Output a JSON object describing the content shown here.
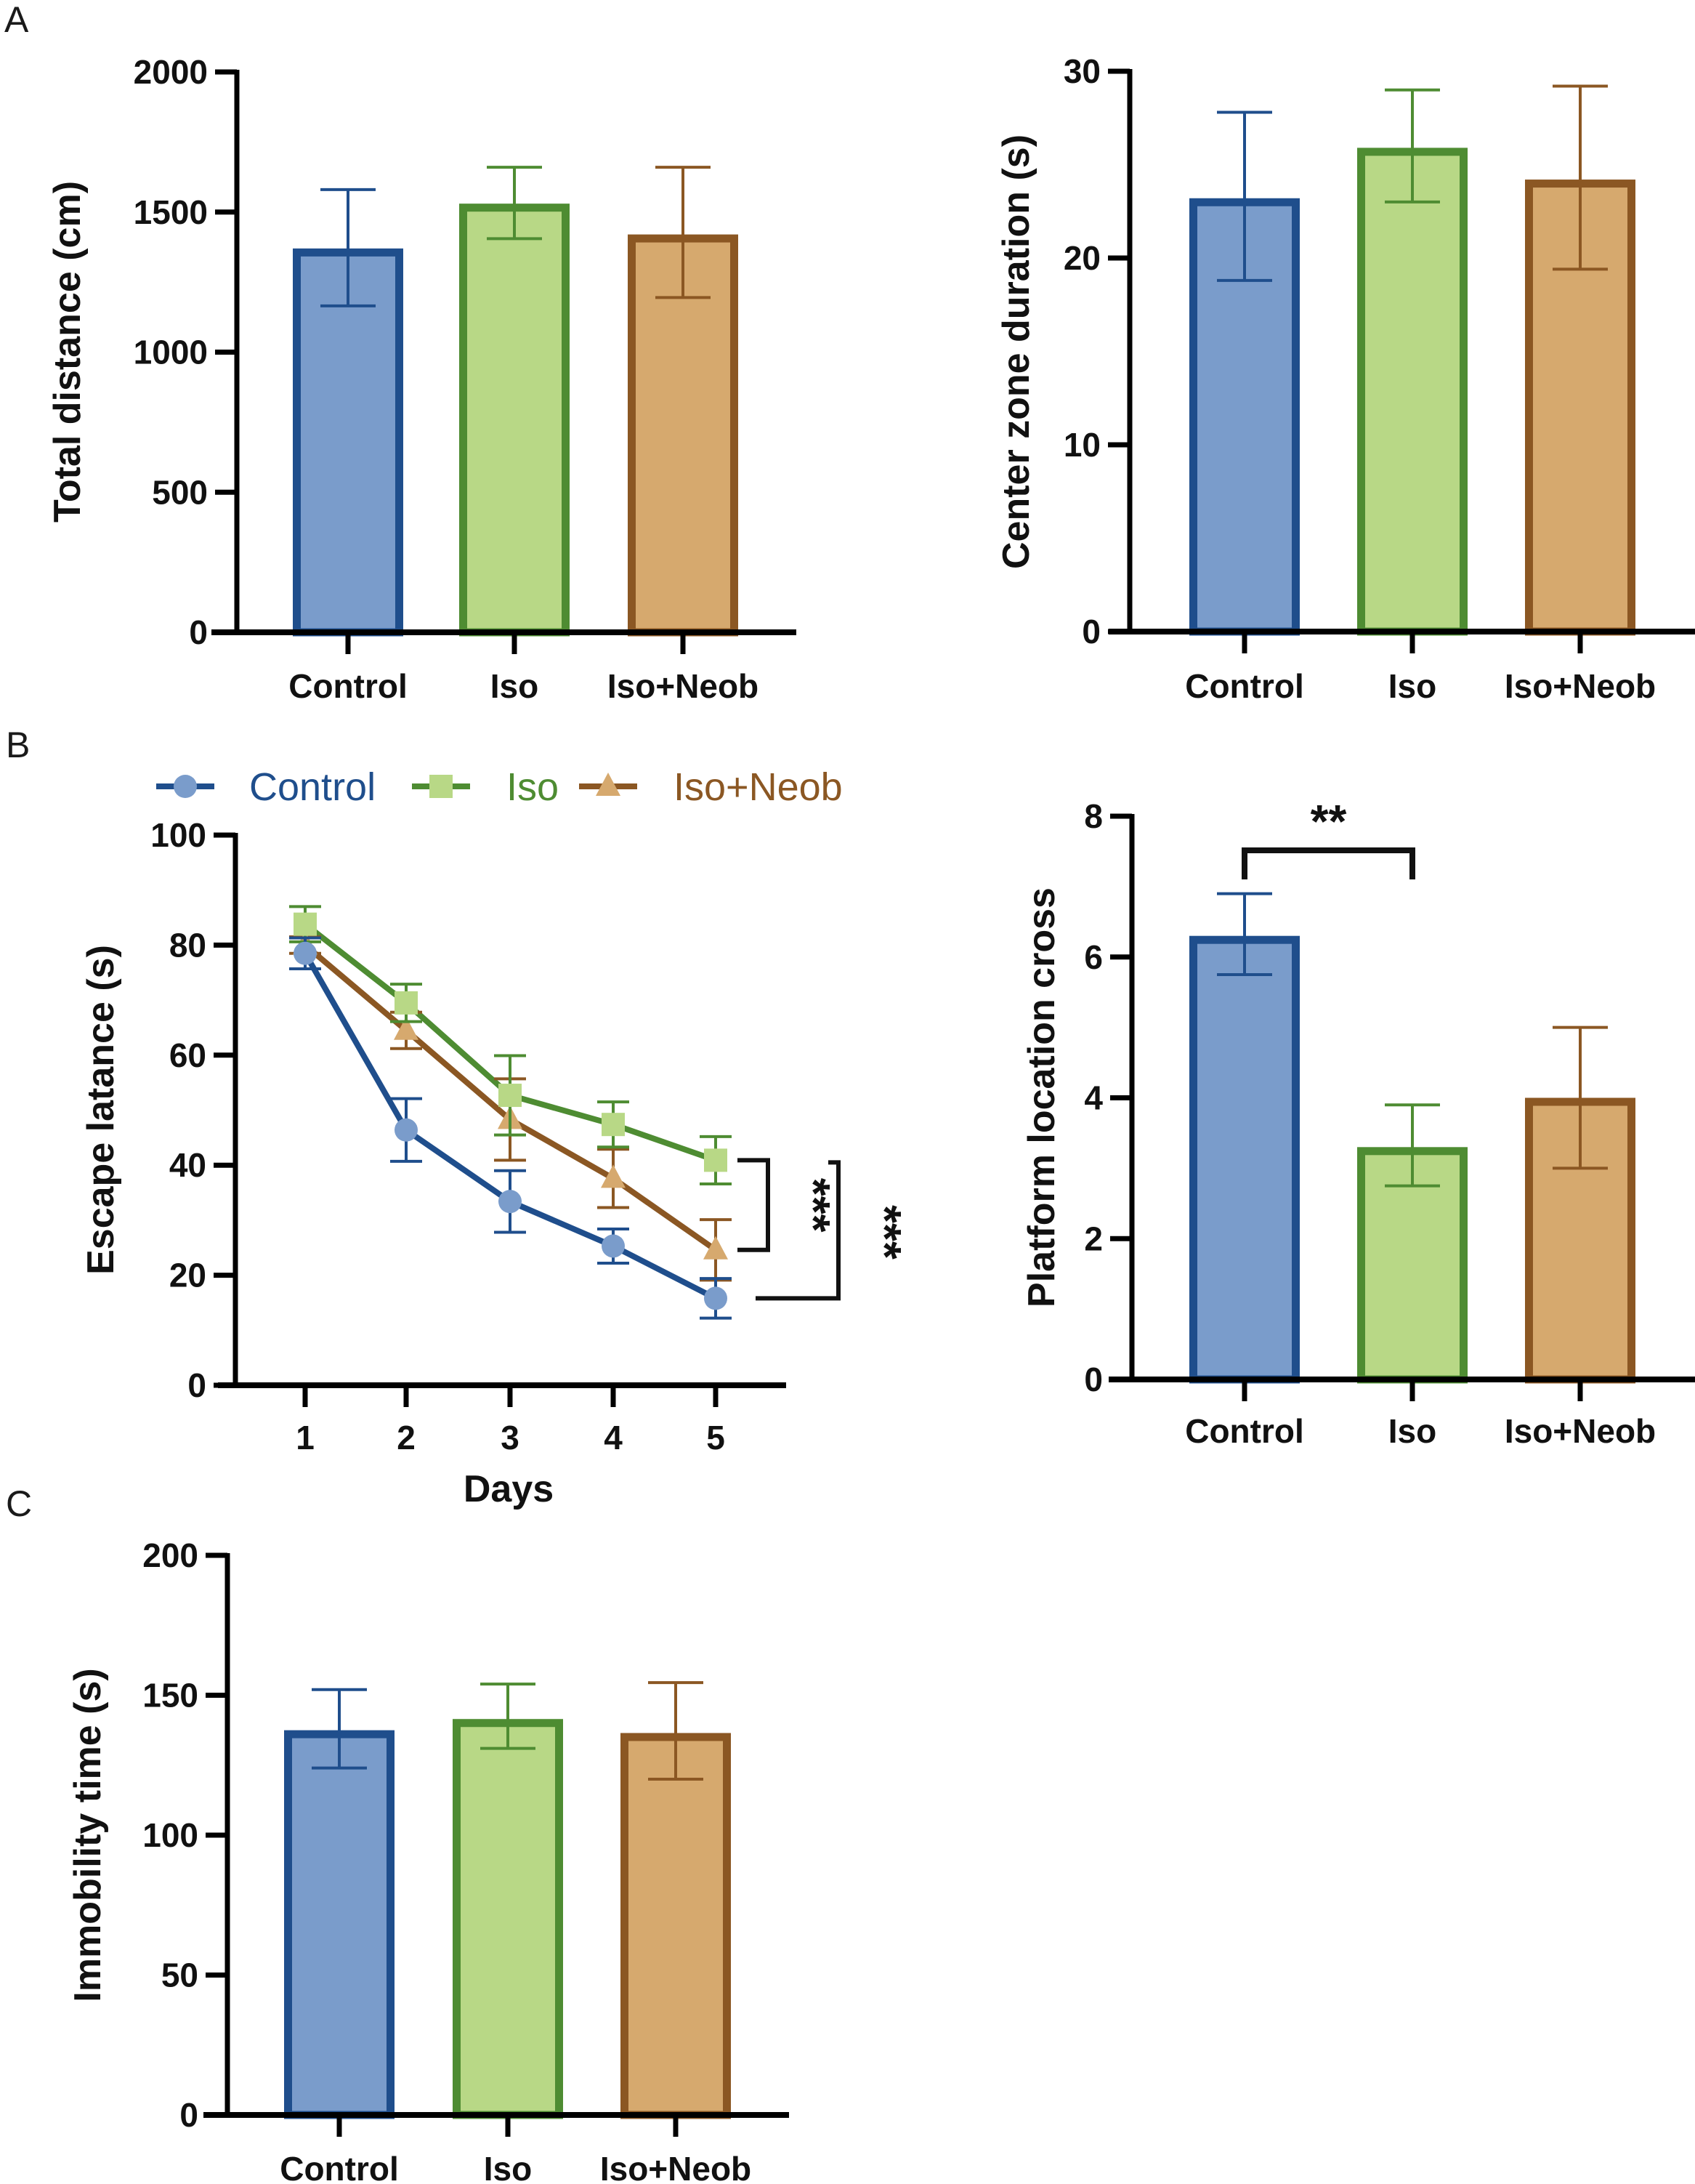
{
  "figure": {
    "panel_labels": [
      "A",
      "B",
      "C"
    ],
    "groups": [
      "Control",
      "Iso",
      "Iso+Neob"
    ],
    "colors": {
      "Control": {
        "fill": "#7a9ccb",
        "stroke": "#1f4e8c"
      },
      "Iso": {
        "fill": "#b8d886",
        "stroke": "#4e8c32"
      },
      "Iso+Neob": {
        "fill": "#d6a96e",
        "stroke": "#8b5723"
      }
    }
  },
  "chart_data": [
    {
      "id": "total-distance",
      "panel": "A",
      "type": "bar",
      "title": "",
      "xlabel": "",
      "ylabel": "Total distance (cm)",
      "categories": [
        "Control",
        "Iso",
        "Iso+Neob"
      ],
      "values": [
        1370,
        1530,
        1420
      ],
      "error_upper": [
        1580,
        1660,
        1660
      ],
      "error_lower": [
        1165,
        1405,
        1195
      ],
      "ylim": [
        0,
        2000
      ],
      "yticks": [
        0,
        500,
        1000,
        1500,
        2000
      ],
      "grid": false,
      "significance": []
    },
    {
      "id": "center-zone-duration",
      "panel": "A",
      "type": "bar",
      "title": "",
      "xlabel": "",
      "ylabel": "Center zone duration (s)",
      "categories": [
        "Control",
        "Iso",
        "Iso+Neob"
      ],
      "values": [
        23.2,
        25.9,
        24.2
      ],
      "error_upper": [
        27.8,
        29.0,
        29.2
      ],
      "error_lower": [
        18.8,
        23.0,
        19.4
      ],
      "ylim": [
        0,
        30
      ],
      "yticks": [
        0,
        10,
        20,
        30
      ],
      "grid": false,
      "significance": []
    },
    {
      "id": "escape-latency",
      "panel": "B",
      "type": "line",
      "title": "",
      "xlabel": "Days",
      "ylabel": "Escape latance (s)",
      "x": [
        1,
        2,
        3,
        4,
        5
      ],
      "xticks": [
        1,
        2,
        3,
        4,
        5
      ],
      "ylim": [
        0,
        100
      ],
      "yticks": [
        0,
        20,
        40,
        60,
        80,
        100
      ],
      "grid": false,
      "legend": {
        "position": "top",
        "entries": [
          "Control",
          "Iso",
          "Iso+Neob"
        ]
      },
      "series": [
        {
          "name": "Control",
          "marker": "circle",
          "values": [
            78.5,
            46.4,
            33.4,
            25.3,
            15.8
          ],
          "error": [
            2.8,
            5.7,
            5.6,
            3.1,
            3.6
          ]
        },
        {
          "name": "Iso",
          "marker": "square",
          "values": [
            83.8,
            69.5,
            52.7,
            47.4,
            40.9
          ],
          "error": [
            3.2,
            3.4,
            7.2,
            4.1,
            4.3
          ]
        },
        {
          "name": "Iso+Neob",
          "marker": "triangle",
          "values": [
            80.0,
            64.5,
            48.3,
            37.6,
            24.6
          ],
          "error": [
            1.5,
            3.3,
            7.4,
            5.3,
            5.5
          ]
        }
      ],
      "significance": [
        {
          "between": [
            "Iso",
            "Iso+Neob"
          ],
          "at_day": 5,
          "label": "***"
        },
        {
          "between": [
            "Iso",
            "Control"
          ],
          "at_day": 5,
          "label": "***"
        }
      ]
    },
    {
      "id": "platform-location-cross",
      "panel": "B",
      "type": "bar",
      "title": "",
      "xlabel": "",
      "ylabel": "Platform location cross",
      "categories": [
        "Control",
        "Iso",
        "Iso+Neob"
      ],
      "values": [
        6.3,
        3.3,
        4.0
      ],
      "error_upper": [
        6.9,
        3.9,
        5.0
      ],
      "error_lower": [
        5.75,
        2.75,
        3.0
      ],
      "ylim": [
        0,
        8
      ],
      "yticks": [
        0,
        2,
        4,
        6,
        8
      ],
      "grid": false,
      "significance": [
        {
          "between": [
            "Control",
            "Iso"
          ],
          "label": "**"
        }
      ]
    },
    {
      "id": "immobility-time",
      "panel": "C",
      "type": "bar",
      "title": "",
      "xlabel": "",
      "ylabel": "Immobility time (s)",
      "categories": [
        "Control",
        "Iso",
        "Iso+Neob"
      ],
      "values": [
        137.5,
        141.5,
        136.5
      ],
      "error_upper": [
        152,
        154,
        154.5
      ],
      "error_lower": [
        124,
        131,
        120
      ],
      "ylim": [
        0,
        200
      ],
      "yticks": [
        0,
        50,
        100,
        150,
        200
      ],
      "grid": false,
      "significance": []
    }
  ]
}
